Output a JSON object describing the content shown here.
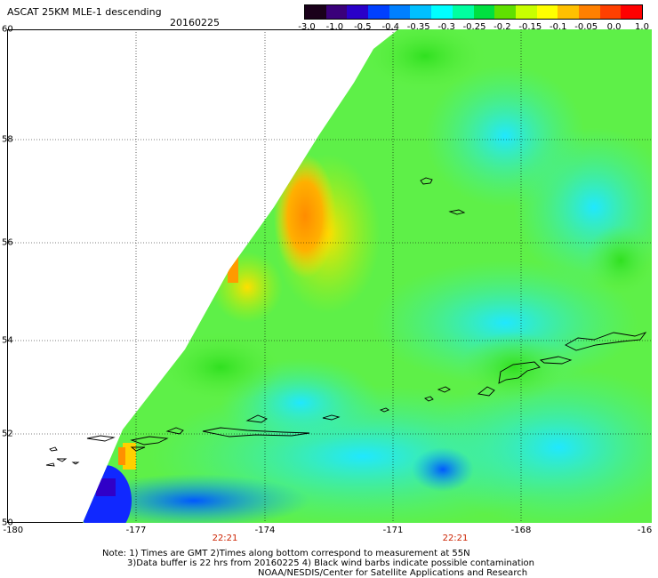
{
  "title": "ASCAT 25KM MLE-1 descending",
  "date": "20160225",
  "colorbar": {
    "labels": [
      "-3.0",
      "-1.0",
      "-0.5",
      "-0.4",
      "-0.35",
      "-0.3",
      "-0.25",
      "-0.2",
      "-0.15",
      "-0.1",
      "-0.05",
      "0.0",
      "1.0"
    ],
    "colors": [
      "#1a001a",
      "#3a007a",
      "#2a00c8",
      "#0040ff",
      "#0080ff",
      "#00c0ff",
      "#00ffff",
      "#00ffa0",
      "#00e040",
      "#60e000",
      "#c8ff00",
      "#ffff00",
      "#ffc000",
      "#ff8000",
      "#ff4000",
      "#ff0000"
    ]
  },
  "axes": {
    "lat_labels": [
      "60",
      "58",
      "56",
      "54",
      "52",
      "50"
    ],
    "lon_labels": [
      "-180",
      "-177",
      "-174",
      "-171",
      "-168",
      "-16"
    ]
  },
  "time_labels": [
    "22:21",
    "22:21"
  ],
  "notes": {
    "line1": "Note: 1) Times are GMT 2)Times along bottom correspond to measurement at 55N",
    "line2": "3)Data buffer is 22 hrs from 20160225 4) Black wind barbs indicate possible contamination",
    "line3": "NOAA/NESDIS/Center for Satellite Applications and Research"
  }
}
